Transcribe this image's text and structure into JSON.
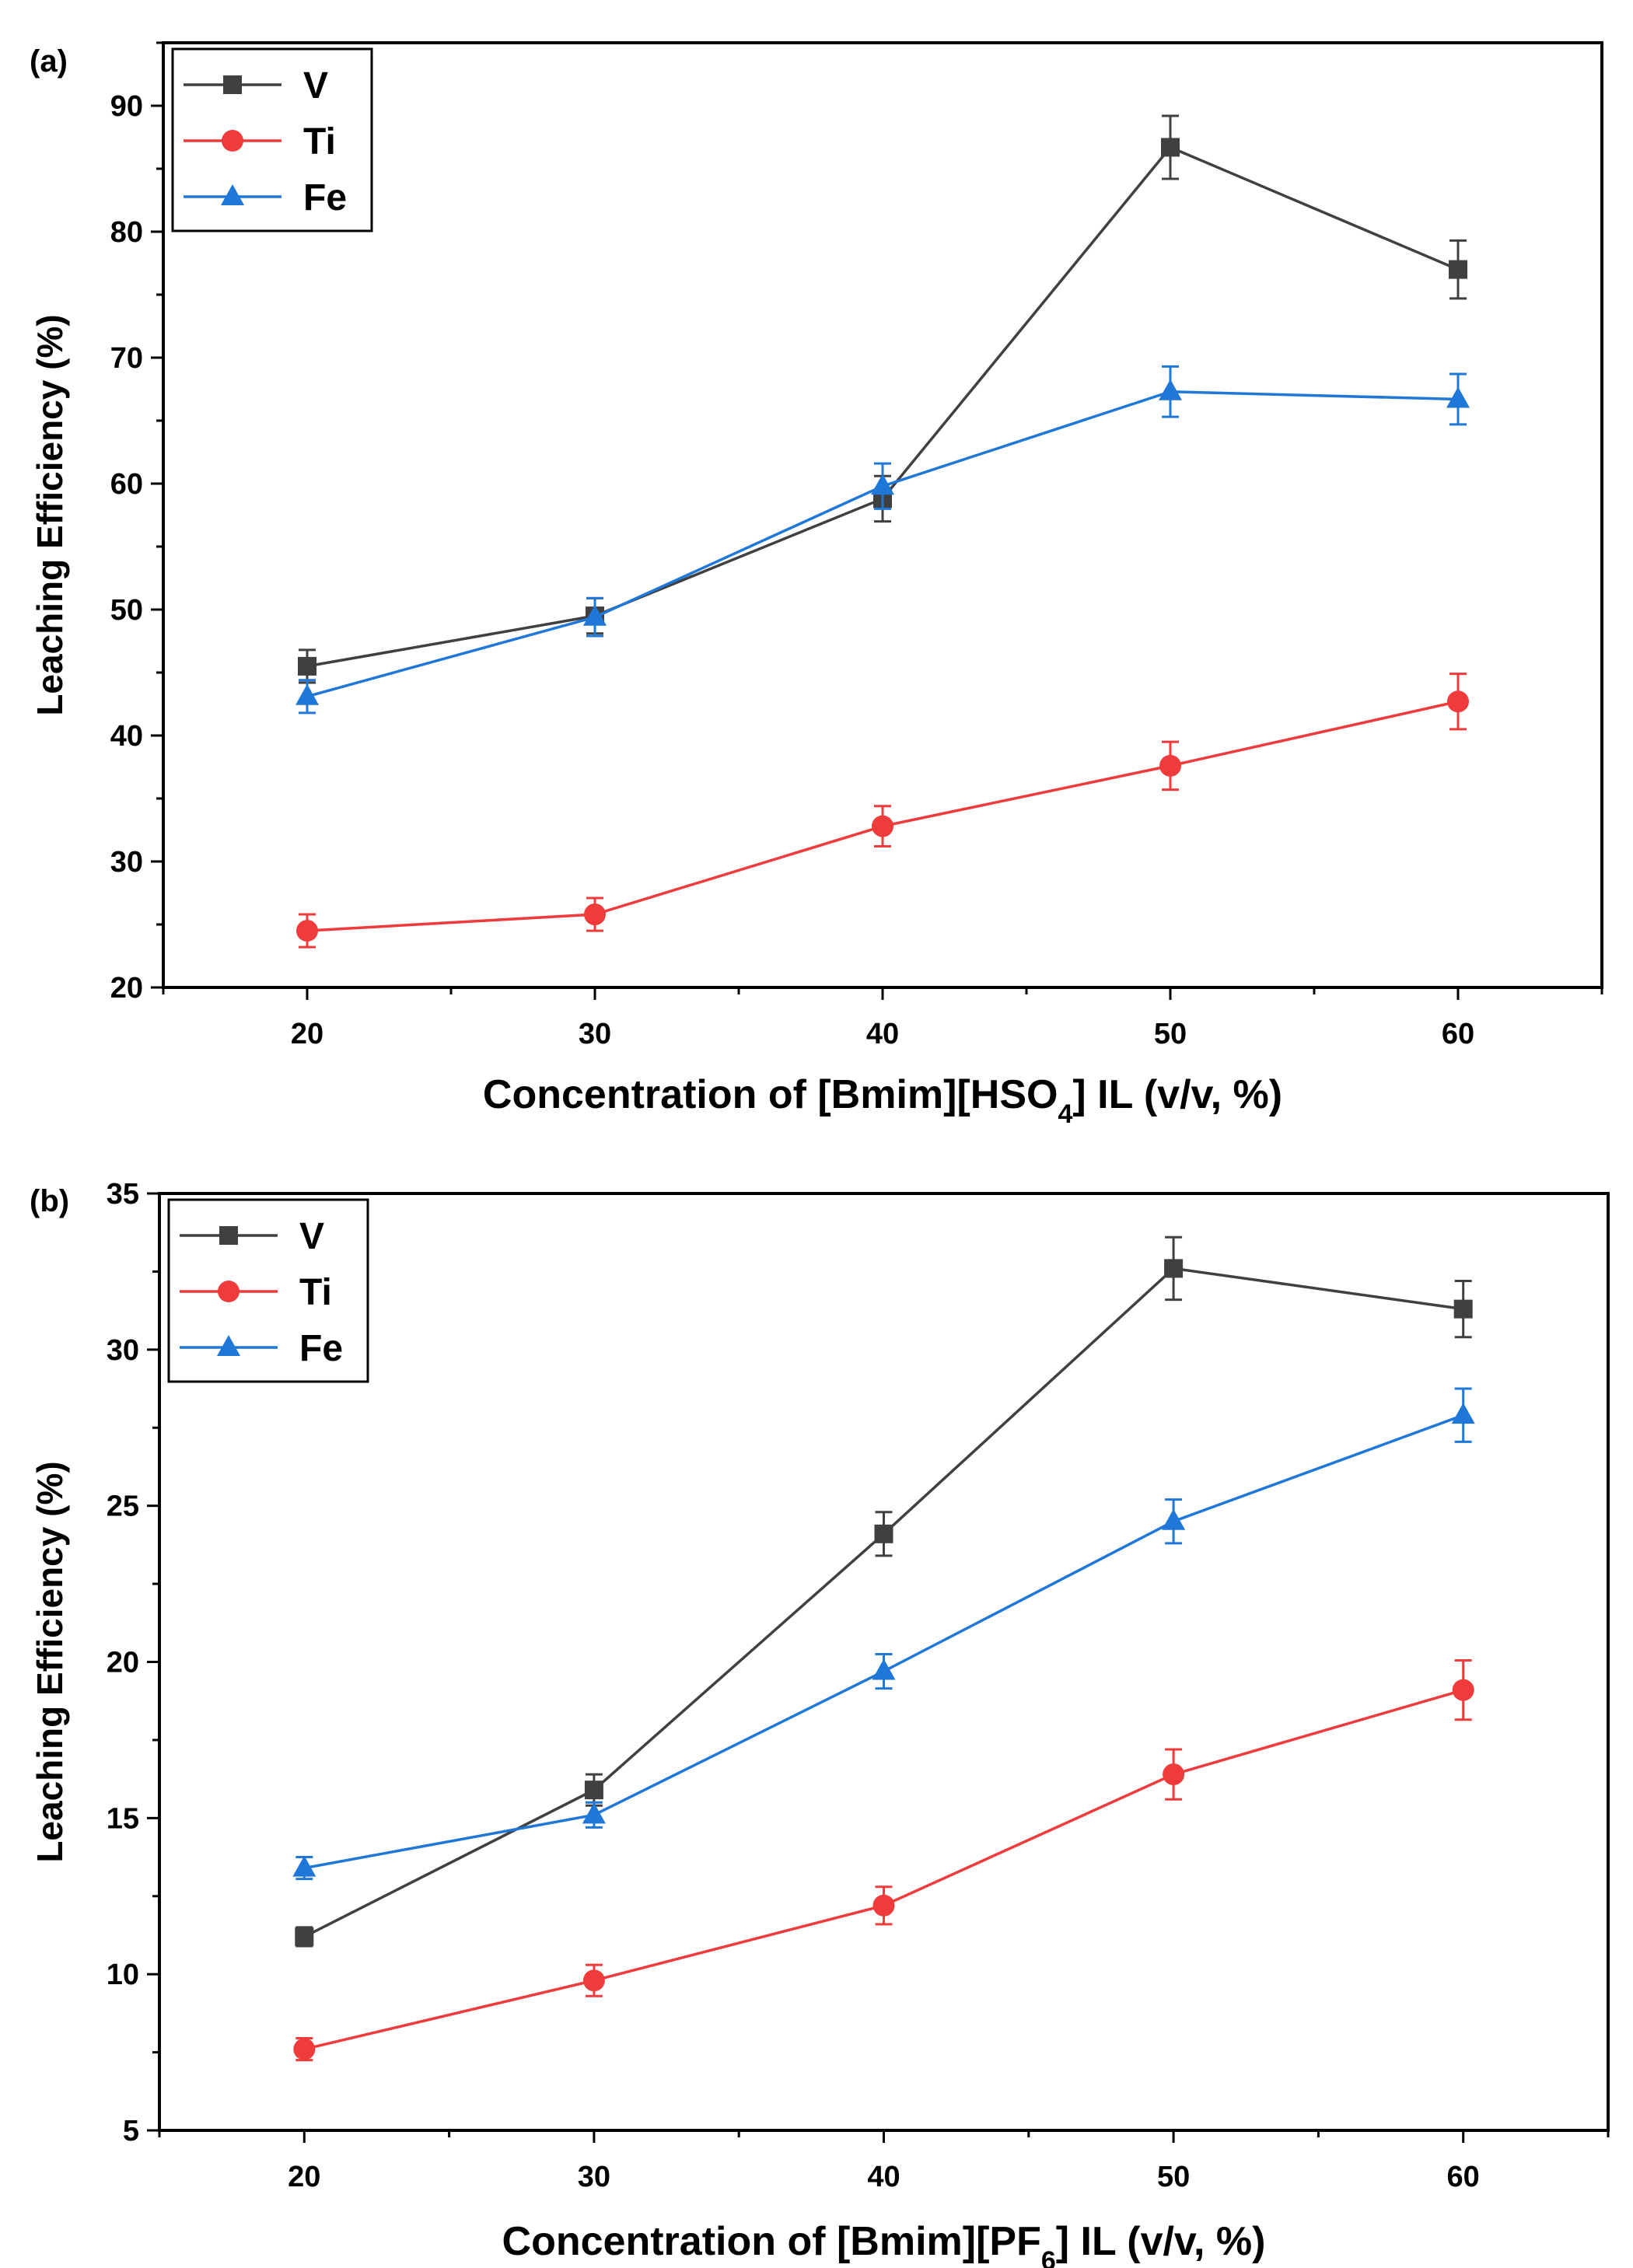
{
  "chart_data": [
    {
      "panel_label": "(a)",
      "type": "line",
      "categories": [
        20,
        30,
        40,
        50,
        60
      ],
      "xlim": [
        15,
        65
      ],
      "ylim": [
        20,
        95
      ],
      "xticks": [
        20,
        30,
        40,
        50,
        60
      ],
      "yticks": [
        20,
        30,
        40,
        50,
        60,
        70,
        80,
        90
      ],
      "xlabel_prefix": "Concentration of [Bmim][HSO",
      "xlabel_sub": "4",
      "xlabel_suffix": "] IL (v/v, %)",
      "ylabel": "Leaching Efficiency (%)",
      "legend_position": "top-left",
      "grid": false,
      "series": [
        {
          "name": "V",
          "color": "#404040",
          "marker": "square",
          "values": [
            45.5,
            49.5,
            58.8,
            86.7,
            77.0
          ],
          "errors": [
            1.3,
            1.4,
            1.8,
            2.5,
            2.3
          ]
        },
        {
          "name": "Ti",
          "color": "#ef3b3b",
          "marker": "circle",
          "values": [
            24.5,
            25.8,
            32.8,
            37.6,
            42.7
          ],
          "errors": [
            1.3,
            1.3,
            1.6,
            1.9,
            2.2
          ]
        },
        {
          "name": "Fe",
          "color": "#1f77d8",
          "marker": "triangle",
          "values": [
            43.1,
            49.4,
            59.8,
            67.3,
            66.7
          ],
          "errors": [
            1.3,
            1.5,
            1.8,
            2.0,
            2.0
          ]
        }
      ]
    },
    {
      "panel_label": "(b)",
      "type": "line",
      "categories": [
        20,
        30,
        40,
        50,
        60
      ],
      "xlim": [
        15,
        65
      ],
      "ylim": [
        5,
        35
      ],
      "xticks": [
        20,
        30,
        40,
        50,
        60
      ],
      "yticks": [
        5,
        10,
        15,
        20,
        25,
        30,
        35
      ],
      "xlabel_prefix": "Concentration of [Bmim][PF",
      "xlabel_sub": "6",
      "xlabel_suffix": "] IL (v/v, %)",
      "ylabel": "Leaching Efficiency (%)",
      "legend_position": "top-left",
      "grid": false,
      "series": [
        {
          "name": "V",
          "color": "#404040",
          "marker": "square",
          "values": [
            11.2,
            15.9,
            24.1,
            32.6,
            31.3
          ],
          "errors": [
            0.3,
            0.5,
            0.7,
            1.0,
            0.9
          ]
        },
        {
          "name": "Ti",
          "color": "#ef3b3b",
          "marker": "circle",
          "values": [
            7.6,
            9.8,
            12.2,
            16.4,
            19.1
          ],
          "errors": [
            0.35,
            0.5,
            0.6,
            0.8,
            0.95
          ]
        },
        {
          "name": "Fe",
          "color": "#1f77d8",
          "marker": "triangle",
          "values": [
            13.4,
            15.1,
            19.7,
            24.5,
            27.9
          ],
          "errors": [
            0.35,
            0.4,
            0.55,
            0.7,
            0.85
          ]
        }
      ]
    }
  ]
}
